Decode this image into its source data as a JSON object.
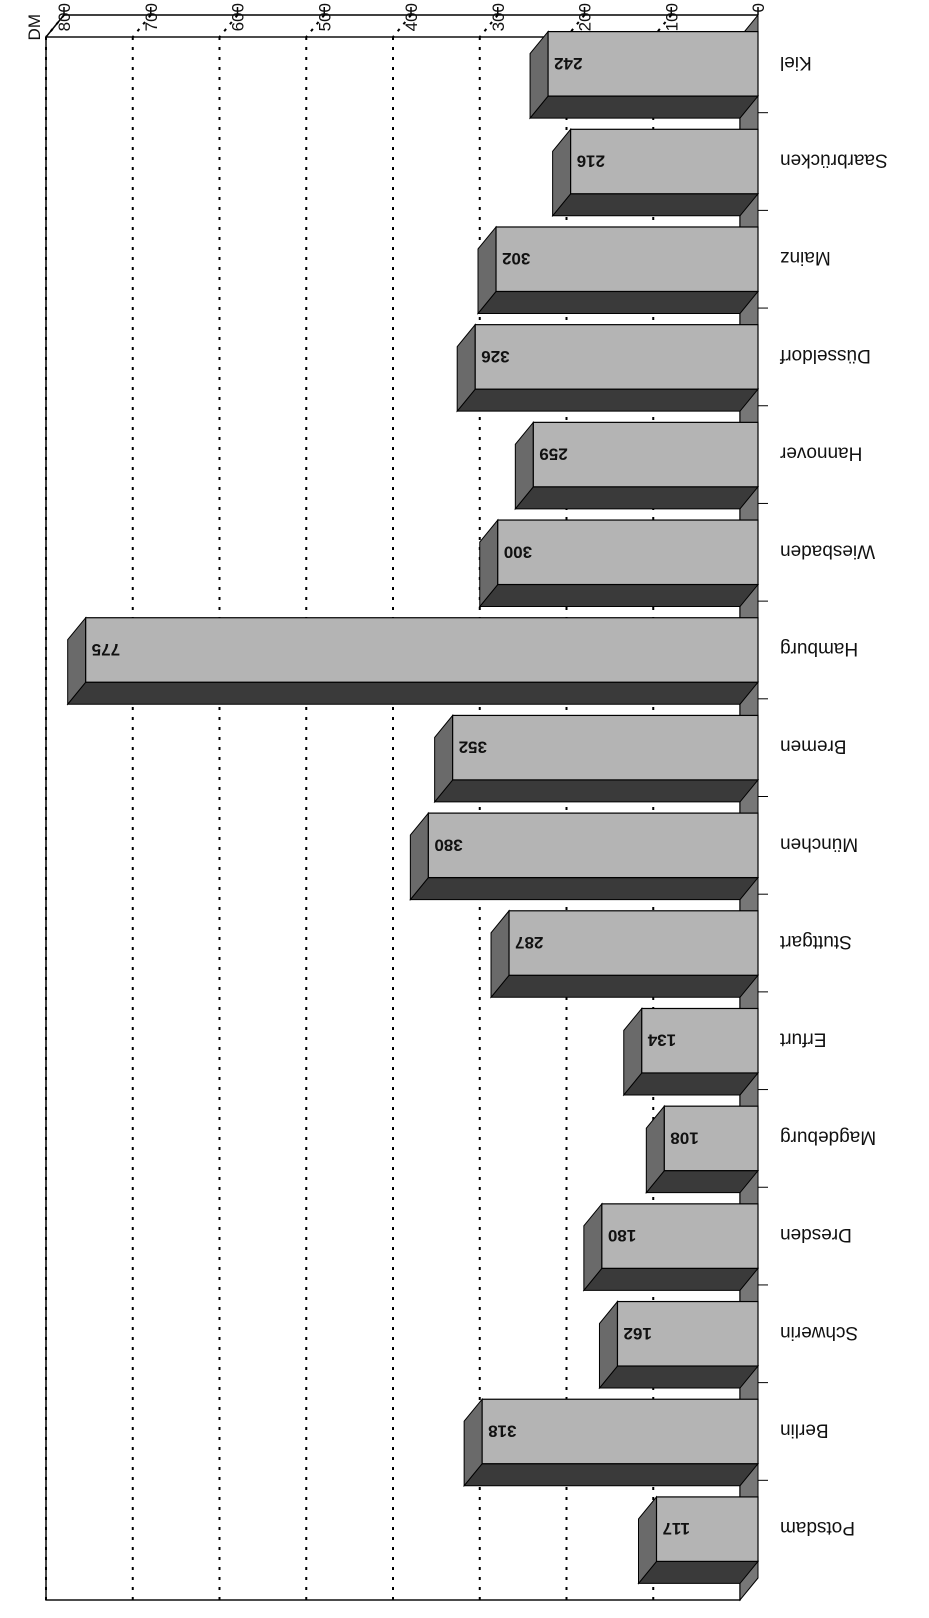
{
  "chart_data": {
    "type": "bar",
    "orientation": "horizontal",
    "three_d": true,
    "unit_label": "DM",
    "categories": [
      "Potsdam",
      "Berlin",
      "Schwerin",
      "Dresden",
      "Magdeburg",
      "Erfurt",
      "Stuttgart",
      "München",
      "Bremen",
      "Hamburg",
      "Wiesbaden",
      "Hannover",
      "Düsseldorf",
      "Mainz",
      "Saarbrücken",
      "Kiel"
    ],
    "values": [
      117,
      318,
      162,
      180,
      108,
      134,
      287,
      380,
      352,
      775,
      300,
      259,
      326,
      302,
      216,
      242
    ],
    "value_labels": [
      "117",
      "318",
      "162",
      "180",
      "108",
      "134",
      "287",
      "380",
      "352",
      "775",
      "300",
      "259",
      "326",
      "302",
      "216",
      "242"
    ],
    "xlim": [
      0,
      800
    ],
    "ticks": [
      "0",
      "100",
      "200",
      "300",
      "400",
      "500",
      "600",
      "700",
      "800"
    ],
    "grid": true,
    "grid_style": "dotted",
    "colors": {
      "bar_front": "#b4b4b4",
      "bar_top": "#3a3a3a",
      "bar_side": "#6a6a6a",
      "floor": "#777777"
    }
  }
}
